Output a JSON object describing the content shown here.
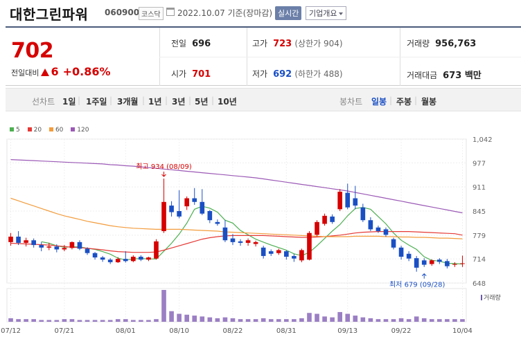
{
  "header": {
    "stock_name": "대한그린파워",
    "stock_code": "060900",
    "market": "코스닥",
    "date_text": "2022.10.07 기준(장마감)",
    "realtime_button": "실시간",
    "company_button": "기업개요"
  },
  "price": {
    "current": "702",
    "change_label": "전일대비",
    "change_value": "6",
    "change_pct": "+0.86%",
    "prev_close_label": "전일",
    "prev_close": "696",
    "open_label": "시가",
    "open": "701",
    "high_label": "고가",
    "high": "723",
    "upper_limit": "(상한가 904)",
    "low_label": "저가",
    "low": "692",
    "lower_limit": "(하한가 488)",
    "volume_label": "거래량",
    "volume": "956,763",
    "amount_label": "거래대금",
    "amount": "673 백만"
  },
  "period_bar": {
    "line_label": "선차트",
    "line_options": [
      "1일",
      "1주일",
      "3개월",
      "1년",
      "3년",
      "5년",
      "10년"
    ],
    "candle_label": "봉차트",
    "candle_options": [
      "일봉",
      "주봉",
      "월봉"
    ],
    "candle_selected": 0
  },
  "legend": [
    {
      "label": "5",
      "color": "#4caf50"
    },
    {
      "label": "20",
      "color": "#e53935"
    },
    {
      "label": "60",
      "color": "#f39c3c"
    },
    {
      "label": "120",
      "color": "#9b59b6"
    }
  ],
  "chart_data": {
    "type": "candlestick",
    "y_ticks": [
      "1,042",
      "977",
      "911",
      "845",
      "779",
      "714",
      "648"
    ],
    "y_tick_values": [
      1042,
      977,
      911,
      845,
      779,
      714,
      648
    ],
    "ylim": [
      648,
      1042
    ],
    "x_tick_labels": [
      "07/12",
      "07/21",
      "08/01",
      "08/10",
      "08/22",
      "08/31",
      "09/13",
      "09/22",
      "10/04"
    ],
    "x_tick_index": [
      0,
      7,
      15,
      22,
      29,
      36,
      44,
      51,
      59
    ],
    "up_color": "#d60000",
    "down_color": "#1a4fc4",
    "high_annotation": {
      "text": "최고 934 (08/09)",
      "index": 20,
      "value": 934
    },
    "low_annotation": {
      "text": "최저 679 (09/28)",
      "index": 54,
      "value": 679
    },
    "volume_label": "거래량",
    "candles": [
      {
        "o": 760,
        "c": 775,
        "h": 785,
        "l": 750
      },
      {
        "o": 775,
        "c": 758,
        "h": 790,
        "l": 752
      },
      {
        "o": 758,
        "c": 765,
        "h": 772,
        "l": 748
      },
      {
        "o": 765,
        "c": 752,
        "h": 770,
        "l": 745
      },
      {
        "o": 752,
        "c": 745,
        "h": 760,
        "l": 735
      },
      {
        "o": 745,
        "c": 748,
        "h": 758,
        "l": 738
      },
      {
        "o": 748,
        "c": 740,
        "h": 754,
        "l": 732
      },
      {
        "o": 740,
        "c": 744,
        "h": 752,
        "l": 735
      },
      {
        "o": 744,
        "c": 760,
        "h": 762,
        "l": 740
      },
      {
        "o": 760,
        "c": 742,
        "h": 765,
        "l": 738
      },
      {
        "o": 742,
        "c": 730,
        "h": 746,
        "l": 725
      },
      {
        "o": 730,
        "c": 718,
        "h": 733,
        "l": 712
      },
      {
        "o": 718,
        "c": 712,
        "h": 722,
        "l": 706
      },
      {
        "o": 712,
        "c": 705,
        "h": 716,
        "l": 700
      },
      {
        "o": 705,
        "c": 714,
        "h": 719,
        "l": 703
      },
      {
        "o": 714,
        "c": 708,
        "h": 735,
        "l": 704
      },
      {
        "o": 708,
        "c": 720,
        "h": 724,
        "l": 705
      },
      {
        "o": 720,
        "c": 712,
        "h": 724,
        "l": 708
      },
      {
        "o": 712,
        "c": 718,
        "h": 720,
        "l": 708
      },
      {
        "o": 715,
        "c": 762,
        "h": 768,
        "l": 712
      },
      {
        "o": 790,
        "c": 870,
        "h": 934,
        "l": 785
      },
      {
        "o": 860,
        "c": 842,
        "h": 872,
        "l": 830
      },
      {
        "o": 845,
        "c": 830,
        "h": 902,
        "l": 825
      },
      {
        "o": 858,
        "c": 880,
        "h": 885,
        "l": 848
      },
      {
        "o": 880,
        "c": 870,
        "h": 908,
        "l": 862
      },
      {
        "o": 870,
        "c": 838,
        "h": 905,
        "l": 834
      },
      {
        "o": 845,
        "c": 820,
        "h": 848,
        "l": 812
      },
      {
        "o": 815,
        "c": 810,
        "h": 822,
        "l": 805
      },
      {
        "o": 800,
        "c": 765,
        "h": 820,
        "l": 760
      },
      {
        "o": 770,
        "c": 760,
        "h": 782,
        "l": 752
      },
      {
        "o": 762,
        "c": 758,
        "h": 768,
        "l": 750
      },
      {
        "o": 758,
        "c": 765,
        "h": 770,
        "l": 750
      },
      {
        "o": 755,
        "c": 760,
        "h": 764,
        "l": 748
      },
      {
        "o": 745,
        "c": 722,
        "h": 750,
        "l": 715
      },
      {
        "o": 735,
        "c": 728,
        "h": 740,
        "l": 722
      },
      {
        "o": 730,
        "c": 738,
        "h": 742,
        "l": 725
      },
      {
        "o": 735,
        "c": 720,
        "h": 738,
        "l": 712
      },
      {
        "o": 722,
        "c": 715,
        "h": 728,
        "l": 706
      },
      {
        "o": 710,
        "c": 738,
        "h": 742,
        "l": 705
      },
      {
        "o": 712,
        "c": 785,
        "h": 790,
        "l": 710
      },
      {
        "o": 780,
        "c": 815,
        "h": 820,
        "l": 776
      },
      {
        "o": 810,
        "c": 832,
        "h": 838,
        "l": 805
      },
      {
        "o": 830,
        "c": 815,
        "h": 836,
        "l": 810
      },
      {
        "o": 850,
        "c": 898,
        "h": 905,
        "l": 845
      },
      {
        "o": 895,
        "c": 855,
        "h": 920,
        "l": 850
      },
      {
        "o": 880,
        "c": 860,
        "h": 914,
        "l": 850
      },
      {
        "o": 855,
        "c": 820,
        "h": 865,
        "l": 815
      },
      {
        "o": 820,
        "c": 795,
        "h": 828,
        "l": 790
      },
      {
        "o": 800,
        "c": 790,
        "h": 805,
        "l": 785
      },
      {
        "o": 795,
        "c": 780,
        "h": 800,
        "l": 775
      },
      {
        "o": 768,
        "c": 745,
        "h": 772,
        "l": 740
      },
      {
        "o": 745,
        "c": 720,
        "h": 750,
        "l": 712
      },
      {
        "o": 728,
        "c": 715,
        "h": 735,
        "l": 708
      },
      {
        "o": 716,
        "c": 690,
        "h": 722,
        "l": 679
      },
      {
        "o": 710,
        "c": 698,
        "h": 716,
        "l": 692
      },
      {
        "o": 700,
        "c": 710,
        "h": 713,
        "l": 695
      },
      {
        "o": 712,
        "c": 706,
        "h": 716,
        "l": 700
      },
      {
        "o": 708,
        "c": 694,
        "h": 714,
        "l": 688
      },
      {
        "o": 698,
        "c": 700,
        "h": 705,
        "l": 692
      },
      {
        "o": 701,
        "c": 702,
        "h": 723,
        "l": 692
      }
    ],
    "volumes": [
      4,
      3,
      3,
      3,
      2,
      2,
      2,
      3,
      3,
      2,
      2,
      2,
      2,
      2,
      3,
      3,
      2,
      2,
      2,
      3,
      36,
      12,
      9,
      8,
      7,
      6,
      5,
      4,
      5,
      4,
      3,
      3,
      3,
      4,
      3,
      3,
      3,
      3,
      4,
      10,
      9,
      6,
      5,
      11,
      9,
      7,
      5,
      4,
      3,
      3,
      3,
      4,
      3,
      6,
      4,
      3,
      3,
      3,
      3,
      3
    ],
    "ma_series": [
      {
        "name": "5",
        "color": "#4caf50",
        "values": [
          null,
          null,
          null,
          null,
          761,
          757,
          750,
          746,
          747,
          747,
          743,
          740,
          734,
          727,
          716,
          711,
          714,
          715,
          714,
          714,
          735,
          757,
          782,
          812,
          850,
          858,
          853,
          842,
          820,
          812,
          792,
          780,
          768,
          760,
          752,
          745,
          738,
          728,
          723,
          732,
          750,
          770,
          790,
          808,
          832,
          852,
          855,
          850,
          830,
          810,
          785,
          765,
          752,
          740,
          720,
          710,
          708,
          702,
          701,
          700
        ]
      },
      {
        "name": "20",
        "color": "#e53935",
        "values": [
          757,
          756,
          755,
          754,
          753,
          752,
          750,
          748,
          746,
          745,
          743,
          741,
          739,
          736,
          734,
          733,
          732,
          732,
          732,
          733,
          738,
          744,
          750,
          756,
          762,
          768,
          772,
          775,
          777,
          778,
          778,
          778,
          778,
          778,
          777,
          776,
          775,
          774,
          773,
          773,
          774,
          775,
          777,
          779,
          782,
          785,
          787,
          788,
          789,
          789,
          789,
          789,
          789,
          788,
          787,
          786,
          785,
          784,
          783,
          779
        ]
      },
      {
        "name": "60",
        "color": "#f39c3c",
        "values": [
          880,
          873,
          866,
          859,
          852,
          845,
          838,
          832,
          827,
          822,
          817,
          813,
          809,
          805,
          802,
          800,
          798,
          797,
          796,
          795,
          795,
          795,
          795,
          794,
          793,
          792,
          791,
          790,
          788,
          787,
          786,
          785,
          784,
          783,
          782,
          781,
          780,
          779,
          778,
          777,
          776,
          775,
          775,
          775,
          775,
          776,
          776,
          776,
          776,
          775,
          775,
          774,
          774,
          773,
          773,
          772,
          771,
          771,
          770,
          769
        ]
      },
      {
        "name": "120",
        "color": "#9b59b6",
        "values": [
          986,
          985,
          984,
          983,
          982,
          981,
          980,
          979,
          978,
          977,
          976,
          975,
          974,
          972,
          971,
          969,
          968,
          966,
          964,
          962,
          960,
          958,
          956,
          954,
          952,
          950,
          948,
          946,
          944,
          942,
          940,
          938,
          936,
          933,
          930,
          927,
          924,
          921,
          918,
          915,
          912,
          909,
          906,
          903,
          900,
          896,
          892,
          888,
          884,
          880,
          876,
          872,
          868,
          864,
          860,
          856,
          852,
          848,
          844,
          840
        ]
      }
    ]
  }
}
